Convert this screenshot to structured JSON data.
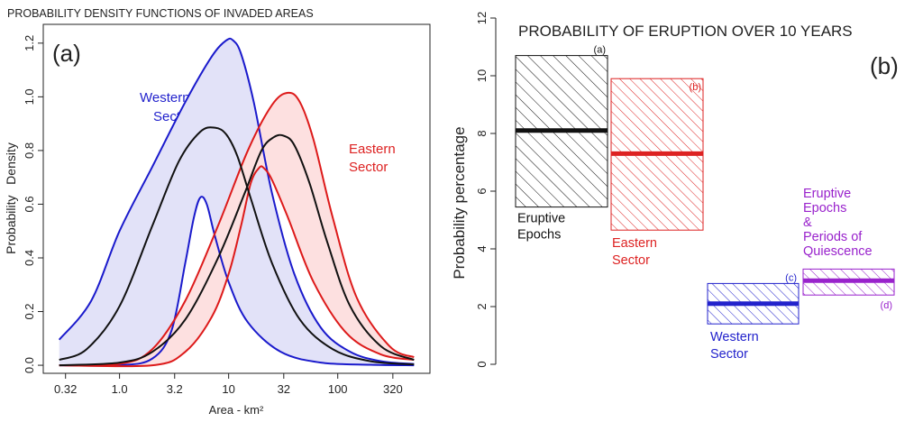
{
  "chart_data": [
    {
      "type": "line",
      "title": "PROBABILITY DENSITY FUNCTIONS OF INVADED AREAS",
      "panel_label": "(a)",
      "xlabel": "Area - km²",
      "ylabel": "Probability   Density",
      "x_scale": "log",
      "xlim": [
        0.2,
        700
      ],
      "ylim": [
        -0.03,
        1.27
      ],
      "x_ticks": [
        0.32,
        1.0,
        3.2,
        10,
        32,
        100,
        320
      ],
      "x_tick_labels": [
        "0.32",
        "1.0",
        "3.2",
        "10",
        "32",
        "100",
        "320"
      ],
      "y_ticks": [
        0.0,
        0.2,
        0.4,
        0.6,
        0.8,
        1.0,
        1.2
      ],
      "y_tick_labels": [
        "0.0",
        "0.2",
        "0.4",
        "0.6",
        "0.8",
        "1.0",
        "1.2"
      ],
      "annotations": [
        {
          "text": "Western",
          "color": "#2222cc"
        },
        {
          "text": "Sector",
          "color": "#2222cc"
        },
        {
          "text": "Eastern",
          "color": "#dd2222"
        },
        {
          "text": "Sector",
          "color": "#dd2222"
        }
      ],
      "series": [
        {
          "color": "#1a1acc",
          "band_fill": "#e2e2f8",
          "upper": {
            "x": [
              0.28,
              0.55,
              1.0,
              2.0,
              4.0,
              7.0,
              9.5,
              11.0,
              13.0,
              17.0,
              25.0,
              40.0,
              70.0,
              130.0,
              250.0,
              500.0
            ],
            "y": [
              0.095,
              0.24,
              0.5,
              0.74,
              0.98,
              1.15,
              1.21,
              1.21,
              1.16,
              0.98,
              0.64,
              0.34,
              0.14,
              0.05,
              0.015,
              0.005
            ]
          },
          "lower": {
            "x": [
              0.28,
              1.0,
              2.0,
              3.0,
              4.0,
              4.8,
              5.5,
              6.3,
              7.5,
              10.0,
              15.0,
              30.0,
              70.0,
              200.0,
              500.0
            ],
            "y": [
              0.0,
              0.0,
              0.025,
              0.13,
              0.38,
              0.55,
              0.625,
              0.6,
              0.48,
              0.31,
              0.16,
              0.05,
              0.01,
              0.002,
              0.0
            ]
          }
        },
        {
          "color": "#dd1a1a",
          "band_fill": "#fde0e0",
          "upper": {
            "x": [
              0.28,
              1.0,
              2.0,
              4.0,
              8.0,
              15.0,
              25.0,
              35.0,
              45.0,
              60.0,
              90.0,
              150.0,
              300.0,
              500.0
            ],
            "y": [
              0.0,
              0.005,
              0.06,
              0.24,
              0.52,
              0.8,
              0.97,
              1.015,
              0.98,
              0.84,
              0.55,
              0.25,
              0.07,
              0.03
            ]
          },
          "lower": {
            "x": [
              0.28,
              2.0,
              4.0,
              7.0,
              10.0,
              13.0,
              16.0,
              19.0,
              21.0,
              25.0,
              35.0,
              60.0,
              120.0,
              250.0,
              500.0
            ],
            "y": [
              0.0,
              0.0,
              0.05,
              0.18,
              0.34,
              0.52,
              0.68,
              0.735,
              0.735,
              0.69,
              0.55,
              0.31,
              0.12,
              0.04,
              0.02
            ]
          }
        },
        {
          "color": "#111111",
          "x": [
            0.28,
            0.5,
            1.0,
            2.0,
            3.5,
            5.5,
            7.5,
            9.5,
            12.0,
            16.0,
            25.0,
            45.0,
            90.0,
            200.0,
            500.0
          ],
          "y": [
            0.02,
            0.06,
            0.22,
            0.52,
            0.76,
            0.87,
            0.885,
            0.86,
            0.78,
            0.62,
            0.38,
            0.17,
            0.06,
            0.015,
            0.003
          ]
        },
        {
          "color": "#111111",
          "x": [
            0.28,
            1.0,
            2.0,
            4.0,
            8.0,
            14.0,
            20.0,
            26.0,
            32.0,
            40.0,
            55.0,
            80.0,
            130.0,
            250.0,
            500.0
          ],
          "y": [
            0.0,
            0.01,
            0.05,
            0.17,
            0.4,
            0.64,
            0.8,
            0.85,
            0.855,
            0.82,
            0.68,
            0.46,
            0.22,
            0.07,
            0.02
          ]
        }
      ]
    },
    {
      "type": "bar",
      "title": "PROBABILITY OF ERUPTION OVER 10 YEARS",
      "panel_label": "(b)",
      "ylabel": "Probability percentage",
      "ylim": [
        0,
        12
      ],
      "y_ticks": [
        0,
        2,
        4,
        6,
        8,
        10,
        12
      ],
      "y_tick_labels": [
        "0",
        "2",
        "4",
        "6",
        "8",
        "10",
        "12"
      ],
      "bars": [
        {
          "tag": "(a)",
          "label": [
            "Eruptive",
            "Epochs"
          ],
          "low": 5.45,
          "high": 10.7,
          "mid": 8.1,
          "color": "#111111",
          "label_color": "#111111"
        },
        {
          "tag": "(b)",
          "label": [
            "Eastern",
            "Sector"
          ],
          "low": 4.65,
          "high": 9.9,
          "mid": 7.3,
          "color": "#dd2222",
          "label_color": "#dd2222"
        },
        {
          "tag": "(c)",
          "label": [
            "Western",
            "Sector"
          ],
          "low": 1.4,
          "high": 2.8,
          "mid": 2.1,
          "color": "#2222cc",
          "label_color": "#2222cc"
        },
        {
          "tag": "(d)",
          "label": [
            "Eruptive",
            "Epochs",
            "&",
            "Periods of",
            "Quiescence"
          ],
          "low": 2.4,
          "high": 3.3,
          "mid": 2.9,
          "color": "#9922cc",
          "label_color": "#9922cc"
        }
      ]
    }
  ]
}
